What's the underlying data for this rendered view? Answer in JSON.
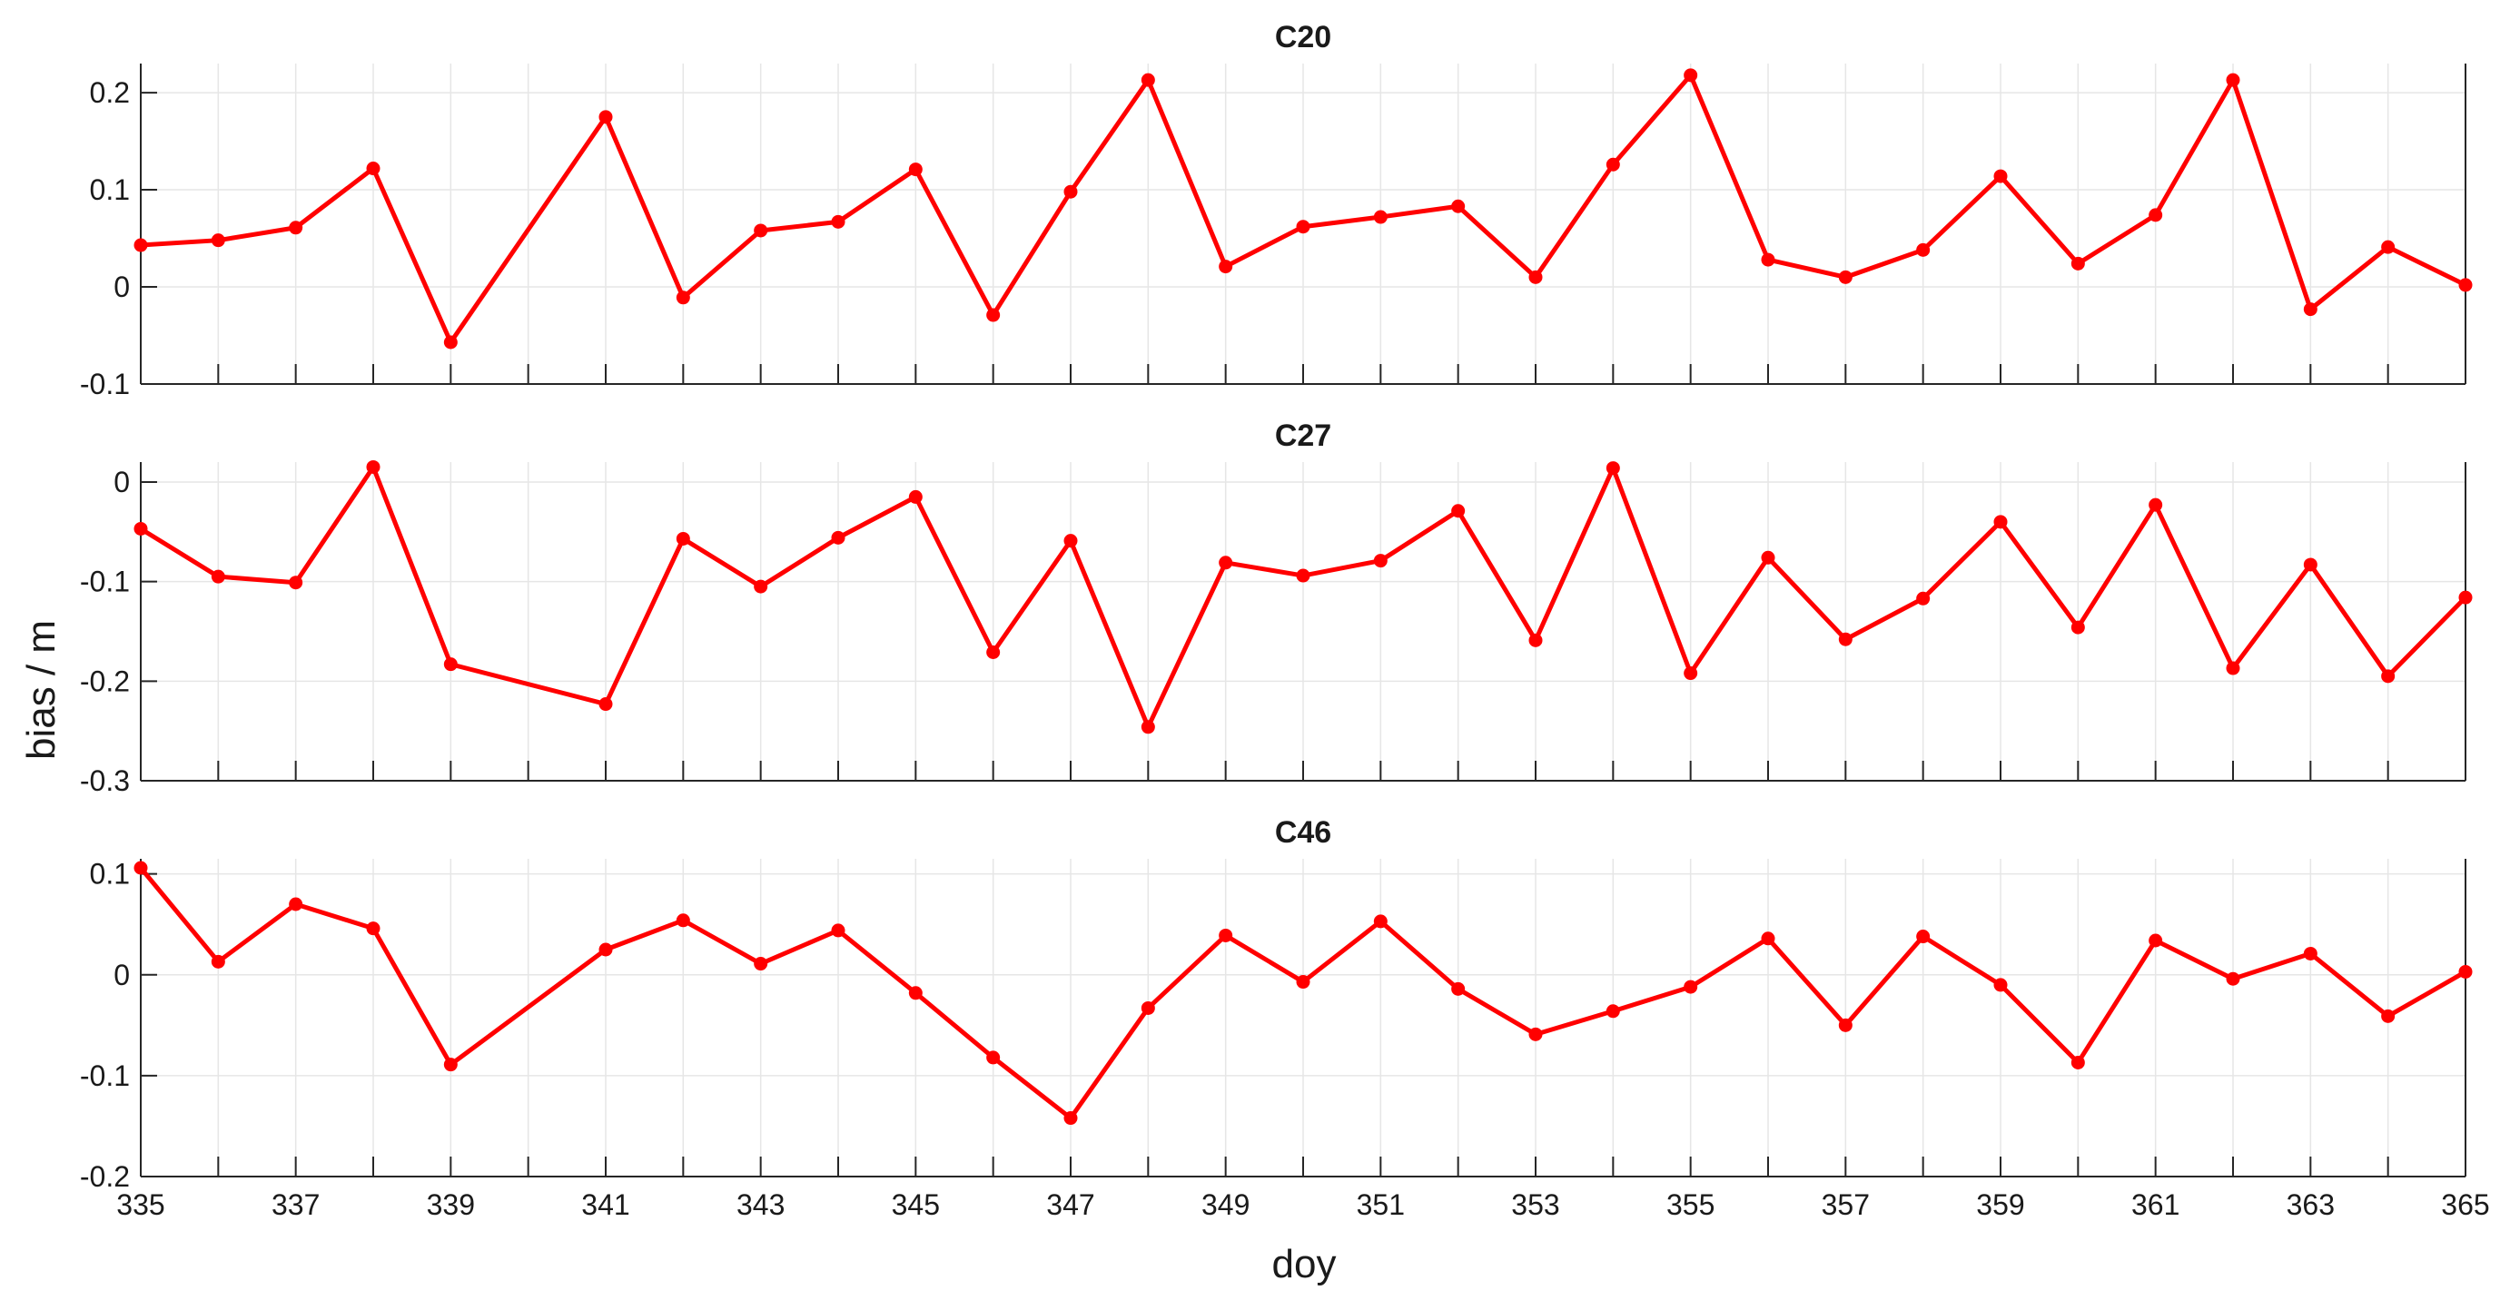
{
  "figure": {
    "ylabel": "bias / m",
    "xlabel": "doy",
    "line_color": "#ff0000",
    "grid_color": "#e6e6e6",
    "axis_color": "#262626"
  },
  "chart_data": [
    {
      "type": "line",
      "title": "C20",
      "x": [
        335,
        336,
        337,
        338,
        339,
        341,
        342,
        343,
        344,
        345,
        346,
        347,
        348,
        349,
        350,
        351,
        352,
        353,
        354,
        355,
        356,
        357,
        358,
        359,
        360,
        361,
        362,
        363,
        364,
        365
      ],
      "series": [
        {
          "values": [
            0.043,
            0.048,
            0.061,
            0.122,
            -0.057,
            0.175,
            -0.011,
            0.058,
            0.067,
            0.121,
            -0.029,
            0.098,
            0.213,
            0.021,
            0.062,
            0.072,
            0.083,
            0.01,
            0.126,
            0.218,
            0.028,
            0.01,
            0.038,
            0.114,
            0.024,
            0.074,
            0.213,
            -0.023,
            0.041,
            0.002
          ]
        }
      ],
      "xlim": [
        335,
        365
      ],
      "ylim": [
        -0.1,
        0.23
      ],
      "yticks": [
        -0.1,
        0,
        0.1,
        0.2
      ],
      "ytick_labels": [
        "-0.1",
        "0",
        "0.1",
        "0.2"
      ],
      "grid": true
    },
    {
      "type": "line",
      "title": "C27",
      "x": [
        335,
        336,
        337,
        338,
        339,
        341,
        342,
        343,
        344,
        345,
        346,
        347,
        348,
        349,
        350,
        351,
        352,
        353,
        354,
        355,
        356,
        357,
        358,
        359,
        360,
        361,
        362,
        363,
        364,
        365
      ],
      "series": [
        {
          "values": [
            -0.047,
            -0.095,
            -0.101,
            0.015,
            -0.183,
            -0.223,
            -0.057,
            -0.105,
            -0.056,
            -0.015,
            -0.171,
            -0.059,
            -0.246,
            -0.081,
            -0.094,
            -0.079,
            -0.029,
            -0.159,
            0.014,
            -0.192,
            -0.076,
            -0.158,
            -0.117,
            -0.04,
            -0.146,
            -0.023,
            -0.187,
            -0.083,
            -0.195,
            -0.116
          ]
        }
      ],
      "xlim": [
        335,
        365
      ],
      "ylim": [
        -0.3,
        0.02
      ],
      "yticks": [
        -0.3,
        -0.2,
        -0.1,
        0
      ],
      "ytick_labels": [
        "-0.3",
        "-0.2",
        "-0.1",
        "0"
      ],
      "grid": true
    },
    {
      "type": "line",
      "title": "C46",
      "x": [
        335,
        336,
        337,
        338,
        339,
        341,
        342,
        343,
        344,
        345,
        346,
        347,
        348,
        349,
        350,
        351,
        352,
        353,
        354,
        355,
        356,
        357,
        358,
        359,
        360,
        361,
        362,
        363,
        364,
        365
      ],
      "series": [
        {
          "values": [
            0.106,
            0.013,
            0.07,
            0.046,
            -0.089,
            0.025,
            0.054,
            0.011,
            0.044,
            -0.018,
            -0.082,
            -0.142,
            -0.033,
            0.039,
            -0.007,
            0.053,
            -0.014,
            -0.059,
            -0.036,
            -0.012,
            0.036,
            -0.05,
            0.038,
            -0.01,
            -0.087,
            0.034,
            -0.004,
            0.021,
            -0.041,
            0.003
          ]
        }
      ],
      "xlim": [
        335,
        365
      ],
      "ylim": [
        -0.2,
        0.115
      ],
      "yticks": [
        -0.2,
        -0.1,
        0,
        0.1
      ],
      "ytick_labels": [
        "-0.2",
        "-0.1",
        "0",
        "0.1"
      ],
      "xticks": [
        335,
        337,
        339,
        341,
        343,
        345,
        347,
        349,
        351,
        353,
        355,
        357,
        359,
        361,
        363,
        365
      ],
      "xtick_labels": [
        "335",
        "337",
        "339",
        "341",
        "343",
        "345",
        "347",
        "349",
        "351",
        "353",
        "355",
        "357",
        "359",
        "361",
        "363",
        "365"
      ],
      "grid": true
    }
  ]
}
